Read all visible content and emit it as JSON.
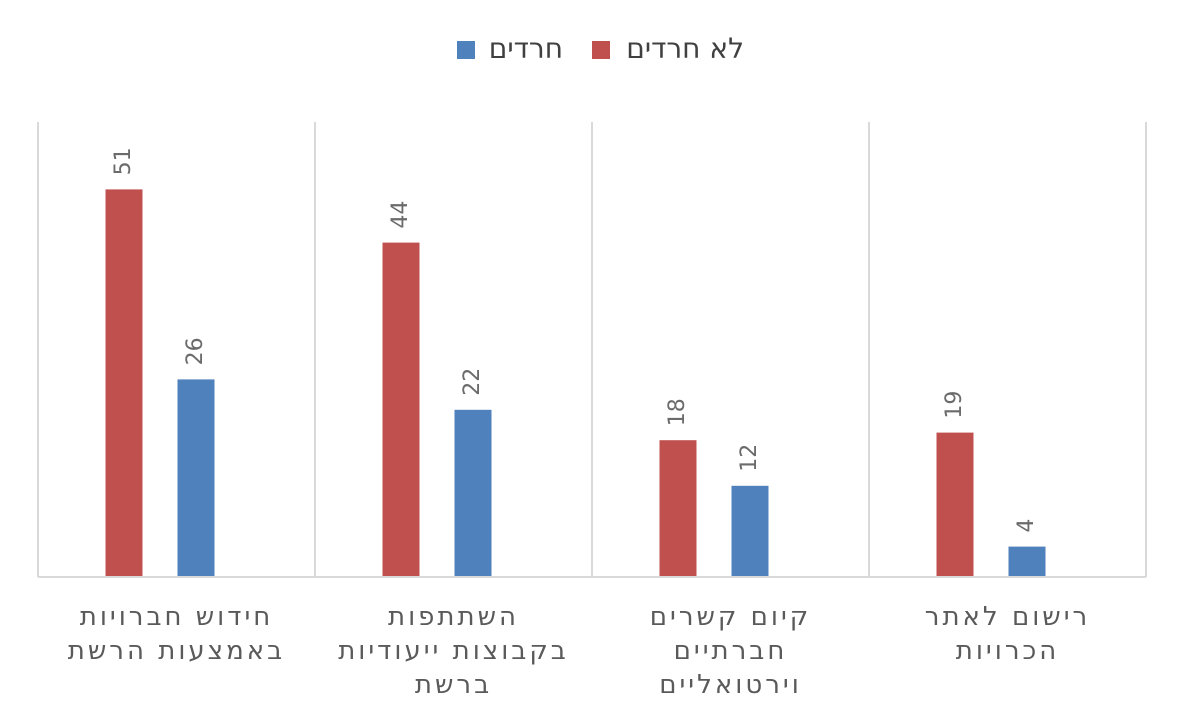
{
  "chart_data": {
    "type": "bar",
    "title": "",
    "xlabel": "",
    "ylabel": "",
    "ylim": [
      0,
      55
    ],
    "grid": false,
    "legend_position": "top",
    "categories": [
      [
        "חידוש חברויות",
        "באמצעות הרשת"
      ],
      [
        "השתתפות",
        "בקבוצות ייעודיות",
        "ברשת"
      ],
      [
        "קיום קשרים",
        "חברתיים",
        "וירטואליים"
      ],
      [
        "רישום לאתר",
        "הכרויות"
      ]
    ],
    "series": [
      {
        "name": "לא חרדים",
        "color": "#c0504d",
        "values": [
          51,
          44,
          18,
          19
        ]
      },
      {
        "name": "חרדים",
        "color": "#4f81bd",
        "values": [
          26,
          22,
          12,
          4
        ]
      }
    ]
  }
}
